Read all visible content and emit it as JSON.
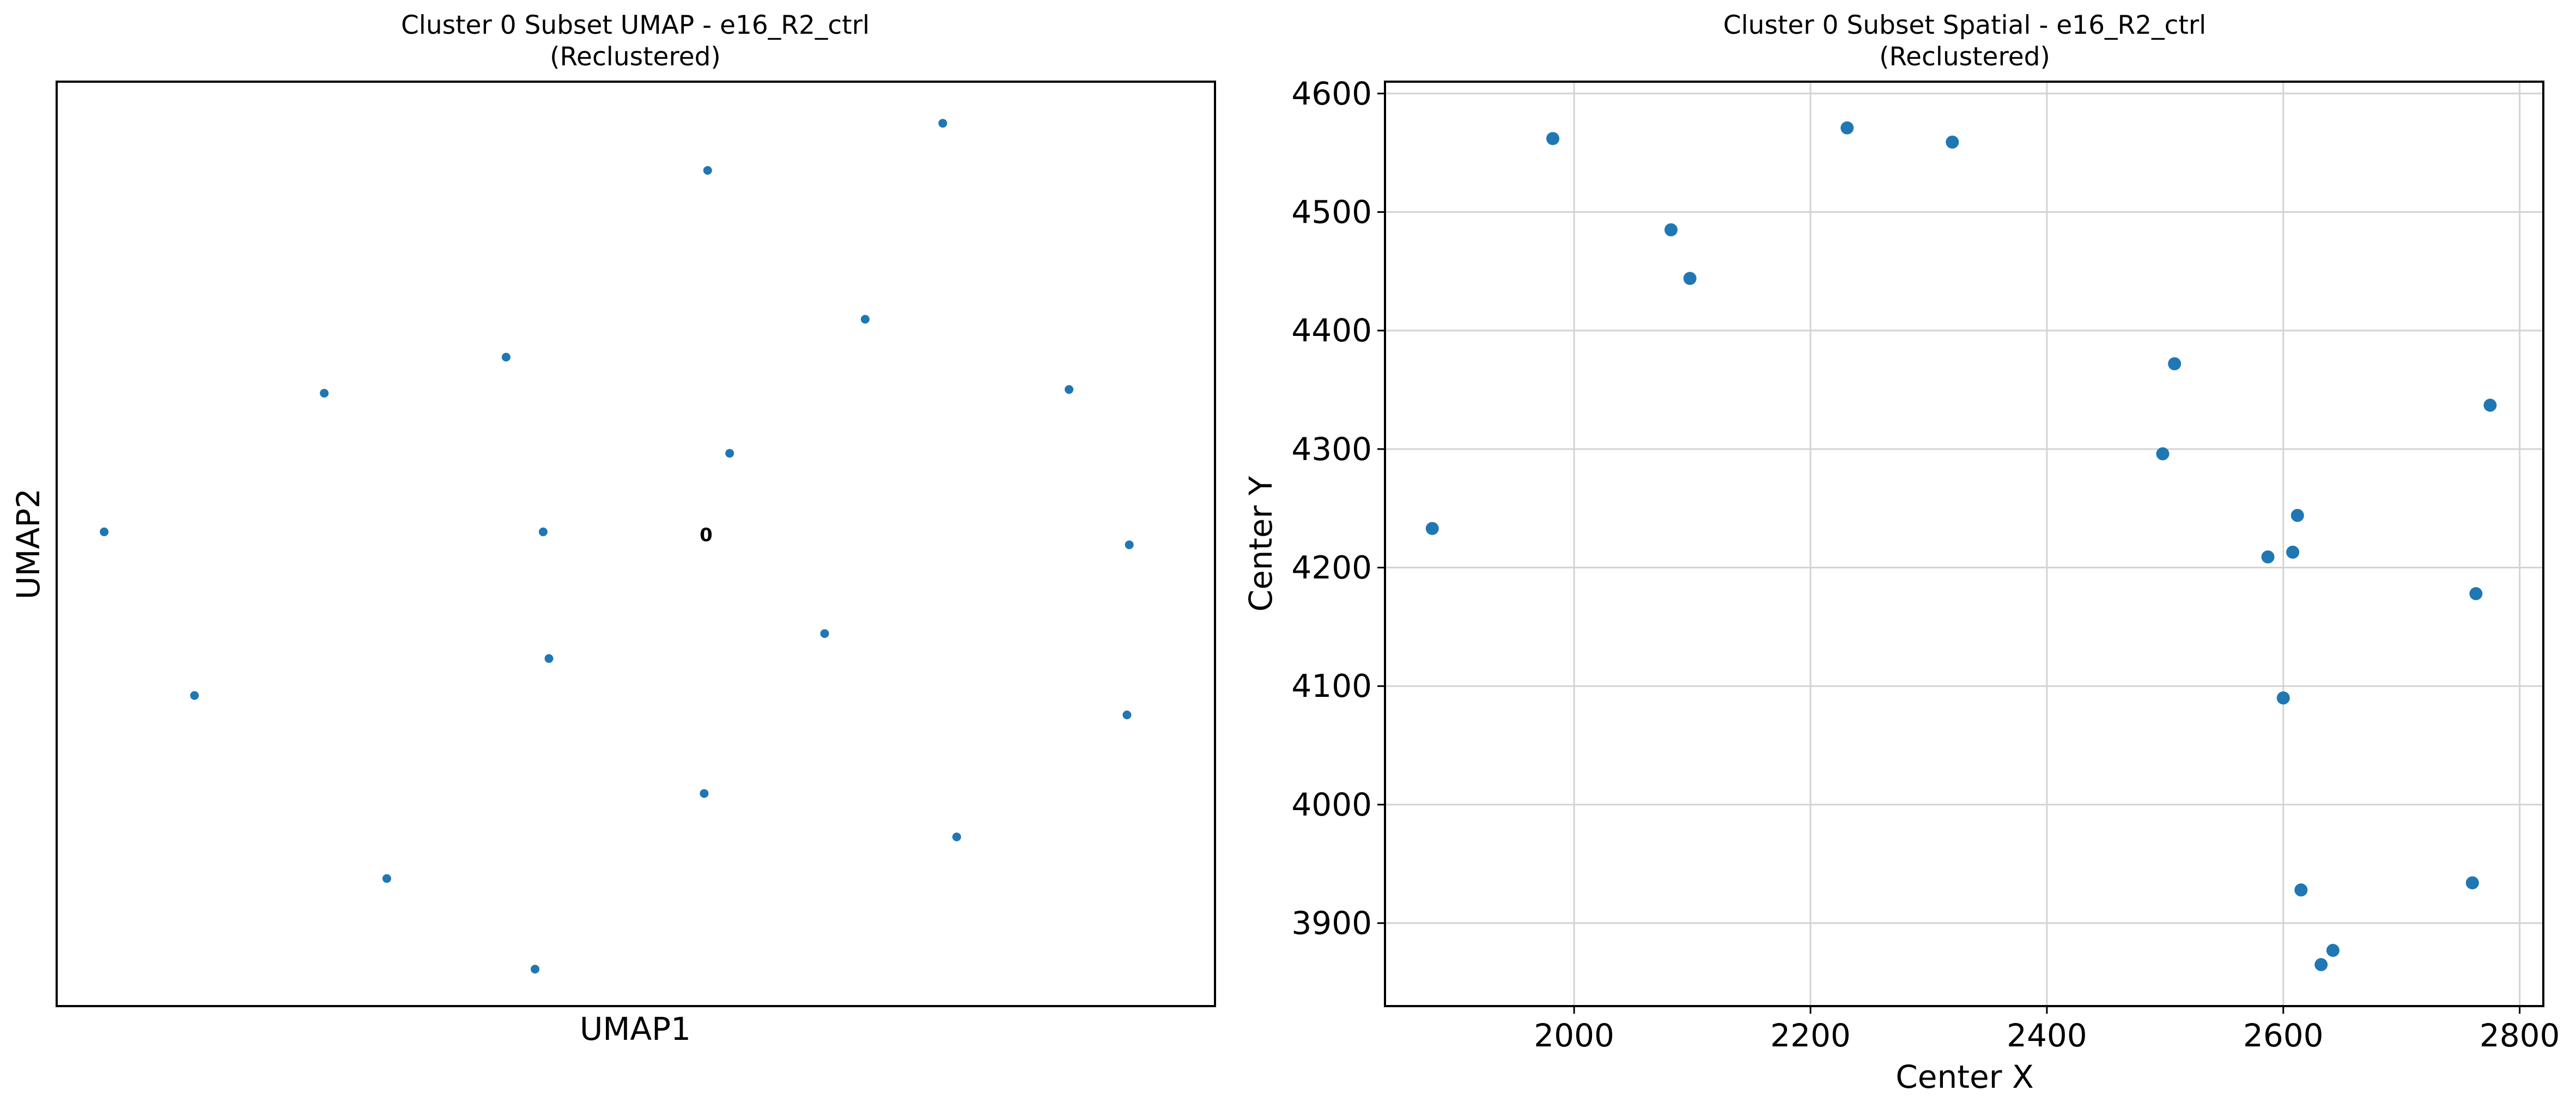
{
  "colors": {
    "marker": "#1f77b4",
    "grid": "#d3d3d3",
    "axes": "#000000",
    "background": "#ffffff"
  },
  "chart_data": [
    {
      "type": "scatter",
      "title": "Cluster 0 Subset UMAP - e16_R2_ctrl",
      "subtitle": "(Reclustered)",
      "xlabel": "UMAP1",
      "ylabel": "UMAP2",
      "grid": false,
      "ticks_shown": false,
      "xlim": [
        0,
        100
      ],
      "ylim": [
        0,
        100
      ],
      "annotations": [
        {
          "text": "0",
          "x": 56.1,
          "y": 50.7
        }
      ],
      "points": [
        {
          "x": 76.5,
          "y": 95.5
        },
        {
          "x": 56.2,
          "y": 90.4
        },
        {
          "x": 69.8,
          "y": 74.3
        },
        {
          "x": 38.8,
          "y": 70.2
        },
        {
          "x": 23.1,
          "y": 66.3
        },
        {
          "x": 87.4,
          "y": 66.7
        },
        {
          "x": 58.1,
          "y": 59.8
        },
        {
          "x": 4.1,
          "y": 51.3
        },
        {
          "x": 42.0,
          "y": 51.3
        },
        {
          "x": 92.6,
          "y": 49.9
        },
        {
          "x": 66.3,
          "y": 40.3
        },
        {
          "x": 42.5,
          "y": 37.6
        },
        {
          "x": 11.9,
          "y": 33.6
        },
        {
          "x": 92.4,
          "y": 31.5
        },
        {
          "x": 55.9,
          "y": 23.0
        },
        {
          "x": 77.7,
          "y": 18.3
        },
        {
          "x": 28.5,
          "y": 13.8
        },
        {
          "x": 41.3,
          "y": 4.0
        }
      ]
    },
    {
      "type": "scatter",
      "title": "Cluster 0 Subset Spatial - e16_R2_ctrl",
      "subtitle": "(Reclustered)",
      "xlabel": "Center X",
      "ylabel": "Center Y",
      "grid": true,
      "xlim": [
        1840,
        2820
      ],
      "ylim": [
        3830,
        4610
      ],
      "xticks": [
        2000,
        2200,
        2400,
        2600,
        2800
      ],
      "yticks": [
        3900,
        4000,
        4100,
        4200,
        4300,
        4400,
        4500,
        4600
      ],
      "points": [
        {
          "x": 1982,
          "y": 4562
        },
        {
          "x": 2231,
          "y": 4571
        },
        {
          "x": 2320,
          "y": 4559
        },
        {
          "x": 2082,
          "y": 4485
        },
        {
          "x": 2098,
          "y": 4444
        },
        {
          "x": 2508,
          "y": 4372
        },
        {
          "x": 2498,
          "y": 4296
        },
        {
          "x": 2775,
          "y": 4337
        },
        {
          "x": 1880,
          "y": 4233
        },
        {
          "x": 2612,
          "y": 4244
        },
        {
          "x": 2587,
          "y": 4209
        },
        {
          "x": 2608,
          "y": 4213
        },
        {
          "x": 2763,
          "y": 4178
        },
        {
          "x": 2600,
          "y": 4090
        },
        {
          "x": 2615,
          "y": 3928
        },
        {
          "x": 2760,
          "y": 3934
        },
        {
          "x": 2642,
          "y": 3877
        },
        {
          "x": 2632,
          "y": 3865
        }
      ]
    }
  ]
}
